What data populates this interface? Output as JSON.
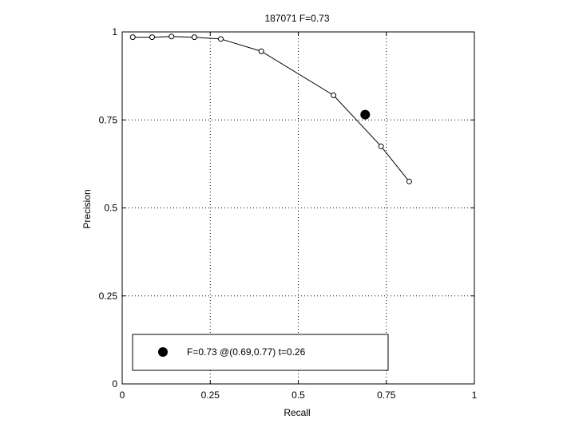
{
  "chart_data": {
    "type": "line",
    "title": "187071 F=0.73",
    "xlabel": "Recall",
    "ylabel": "Precision",
    "xlim": [
      0,
      1
    ],
    "ylim": [
      0,
      1
    ],
    "xticks": [
      0,
      0.25,
      0.5,
      0.75,
      1
    ],
    "yticks": [
      0,
      0.25,
      0.5,
      0.75,
      1
    ],
    "xtick_labels": [
      "0",
      "0.25",
      "0.5",
      "0.75",
      "1"
    ],
    "ytick_labels": [
      "0",
      "0.25",
      "0.5",
      "0.75",
      "1"
    ],
    "grid": true,
    "series": [
      {
        "x": [
          0.03,
          0.085,
          0.14,
          0.205,
          0.28,
          0.395,
          0.6,
          0.735,
          0.815
        ],
        "y": [
          0.985,
          0.985,
          0.987,
          0.985,
          0.98,
          0.945,
          0.82,
          0.675,
          0.575
        ]
      }
    ],
    "best_point": {
      "x": 0.69,
      "y": 0.765
    },
    "legend": {
      "placement": "bottom",
      "label": "F=0.73 @(0.69,0.77) t=0.26"
    },
    "colors": {
      "line": "#000000",
      "grid": "#000000",
      "background": "#ffffff"
    }
  }
}
